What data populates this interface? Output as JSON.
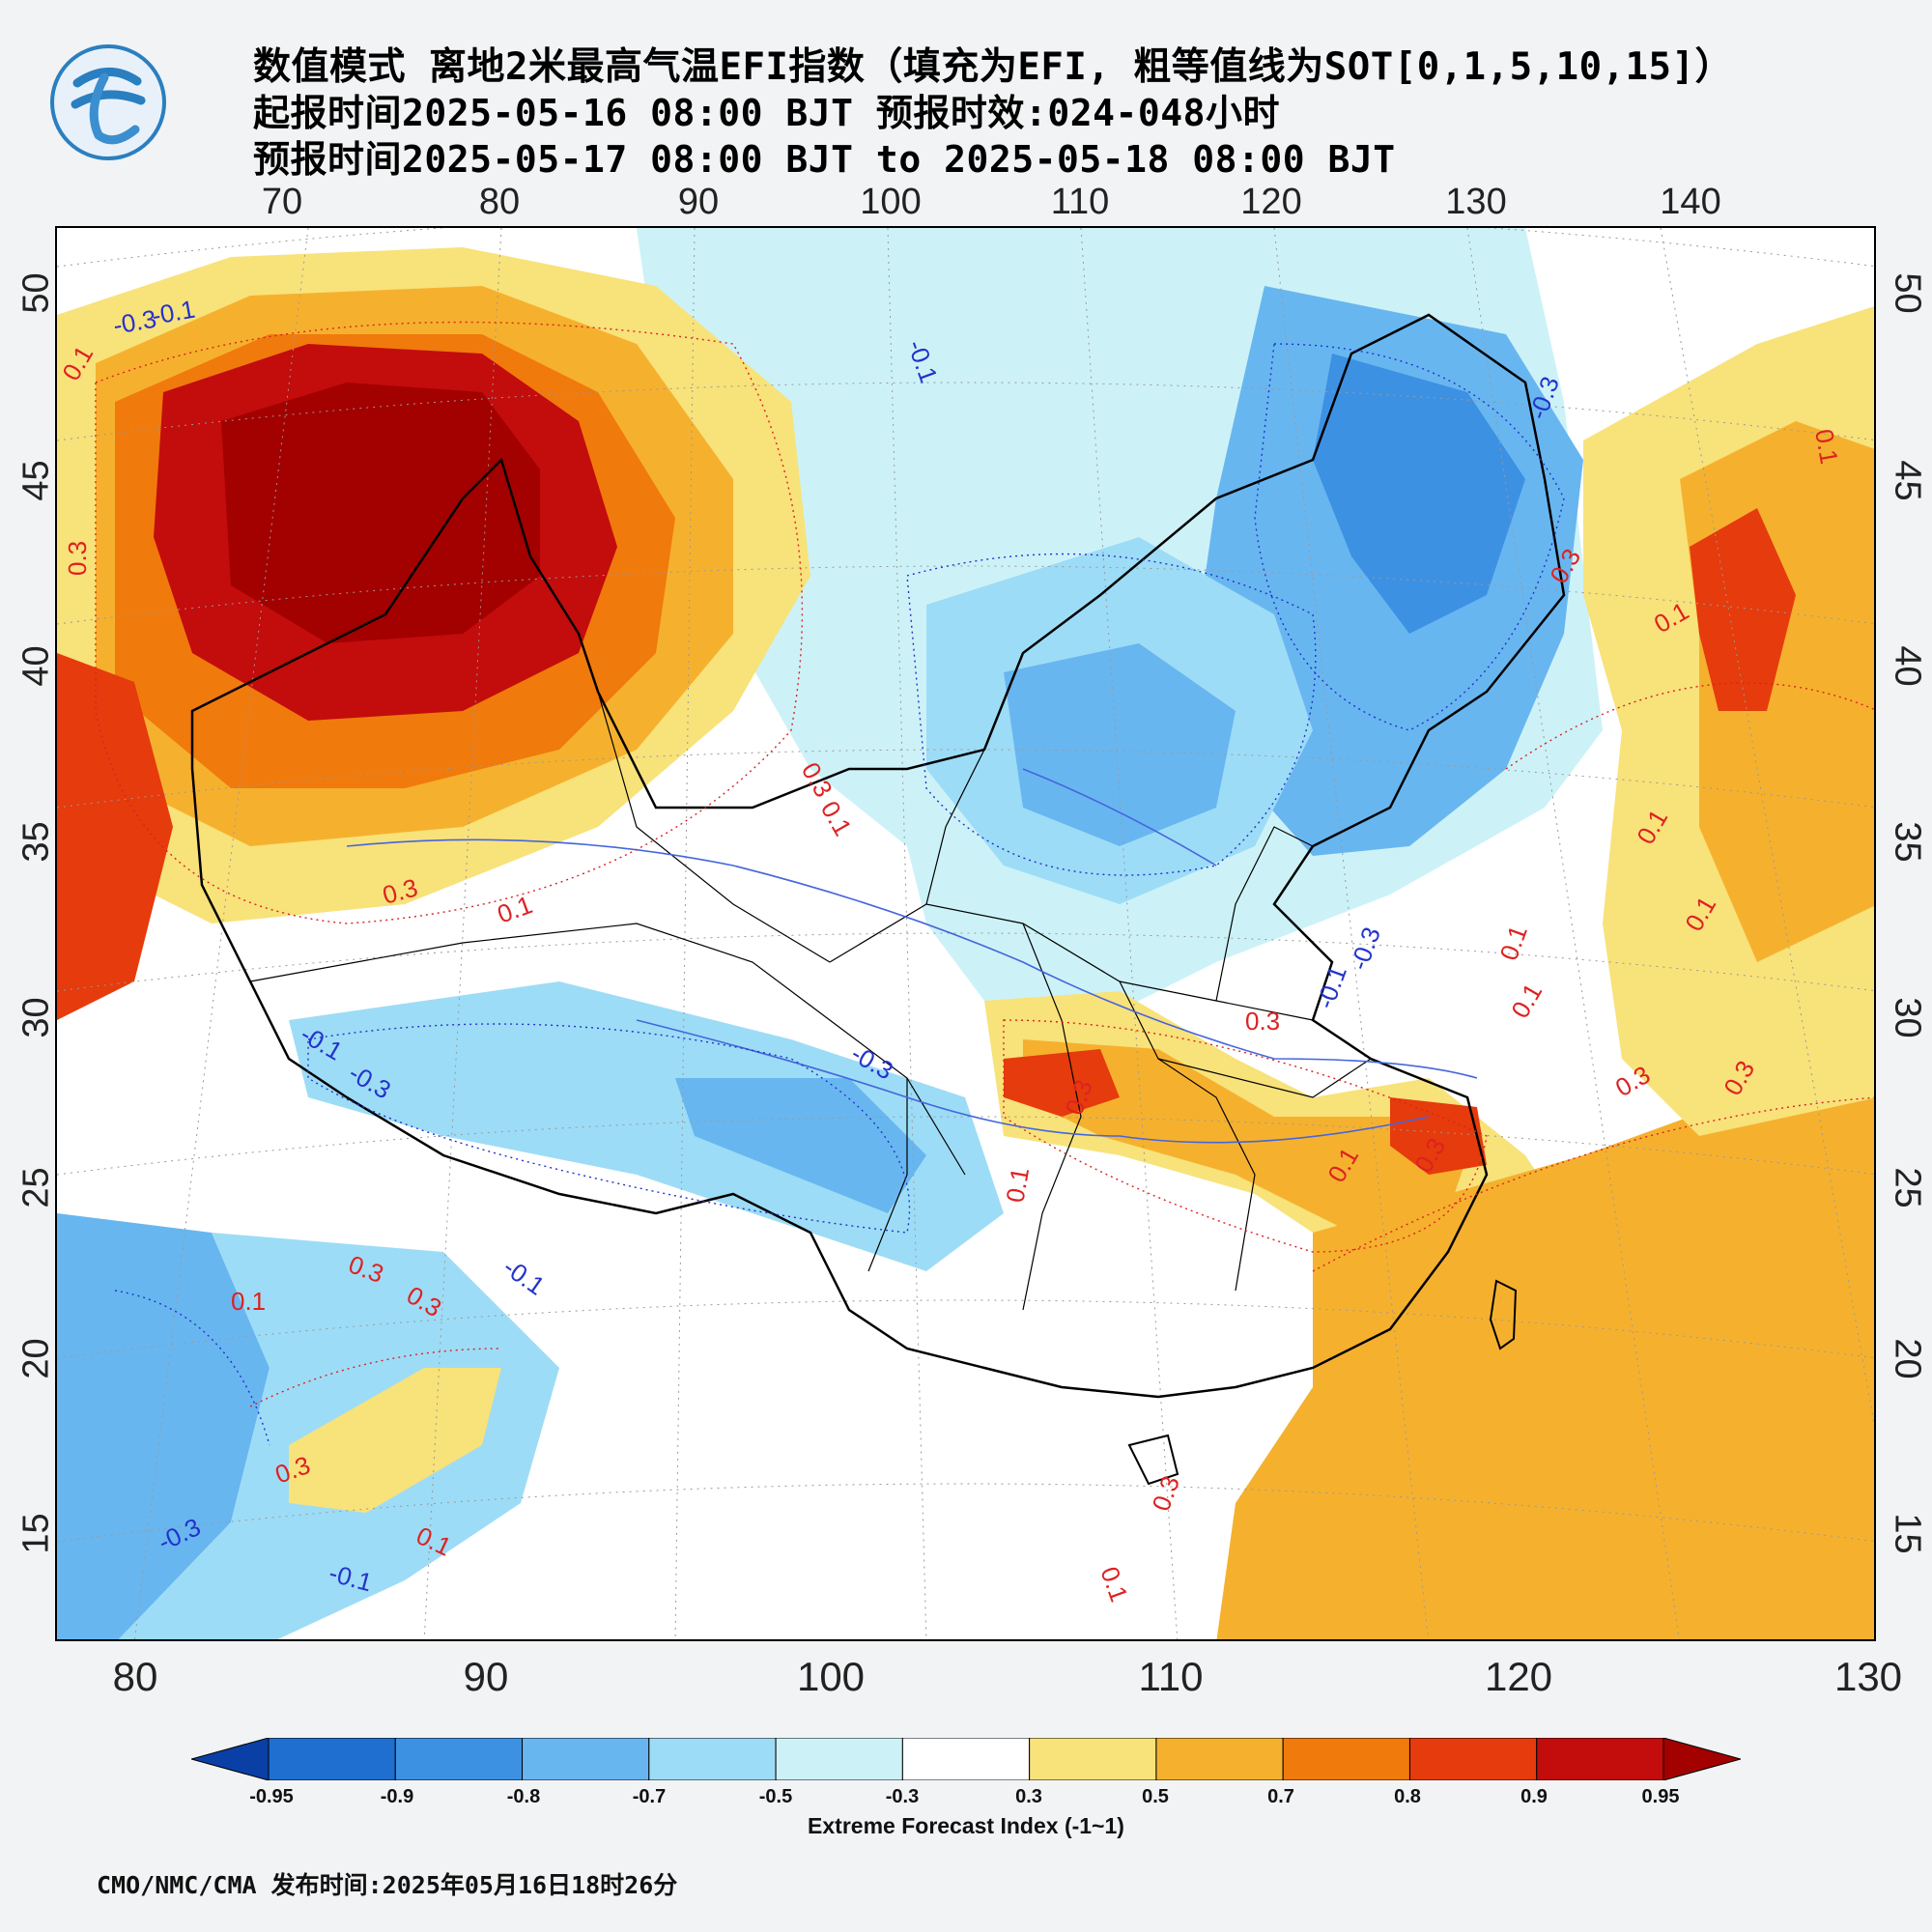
{
  "header": {
    "title_line_1": "数值模式 离地2米最高气温EFI指数（填充为EFI, 粗等值线为SOT[0,1,5,10,15]）",
    "title_line_2": "起报时间2025-05-16 08:00 BJT 预报时效:024-048小时",
    "title_line_3": "预报时间2025-05-17 08:00 BJT to 2025-05-18 08:00 BJT"
  },
  "logo": {
    "icon": "cma-logo-icon",
    "primary_color": "#2a7fc0"
  },
  "map": {
    "projection": "lambert",
    "top_lon_labels": [
      "70",
      "80",
      "90",
      "100",
      "110",
      "120",
      "130",
      "140"
    ],
    "bottom_lon_labels": [
      "80",
      "90",
      "100",
      "110",
      "120",
      "130"
    ],
    "lat_labels": [
      "50",
      "45",
      "40",
      "35",
      "30",
      "25",
      "20",
      "15"
    ],
    "contour_labels": {
      "positive": [
        "0.1",
        "0.3",
        "0.3",
        "0.1",
        "0.3",
        "0.1",
        "0.3",
        "0.3",
        "0.1",
        "0.3",
        "0.1",
        "0.3",
        "0.3",
        "0.1",
        "0.3",
        "0.1",
        "0.3",
        "0.1",
        "0.1",
        "0.3",
        "0.1",
        "0.1",
        "0.1",
        "0.1",
        "0.3",
        "0.3",
        "0.1"
      ],
      "negative": [
        "-0.3",
        "-0.1",
        "-0.1",
        "-0.3",
        "-0.1",
        "-0.3",
        "-0.1",
        "-0.3",
        "-0.1",
        "-0.3",
        "-0.3",
        "-0.1"
      ]
    }
  },
  "colorbar": {
    "labels": [
      "-0.95",
      "-0.9",
      "-0.8",
      "-0.7",
      "-0.5",
      "-0.3",
      "0.3",
      "0.5",
      "0.7",
      "0.8",
      "0.9",
      "0.95"
    ],
    "colors": [
      "#0a3fa6",
      "#1f6fd0",
      "#3d91e3",
      "#68b6f0",
      "#9ddcf6",
      "#ccf2f8",
      "#ffffff",
      "#f8e27a",
      "#f5b12e",
      "#f07a0c",
      "#e63b0c",
      "#c30c0c",
      "#a30000"
    ],
    "title": "Extreme Forecast Index (-1~1)"
  },
  "footer": {
    "text": "CMO/NMC/CMA 发布时间:2025年05月16日18时26分"
  }
}
